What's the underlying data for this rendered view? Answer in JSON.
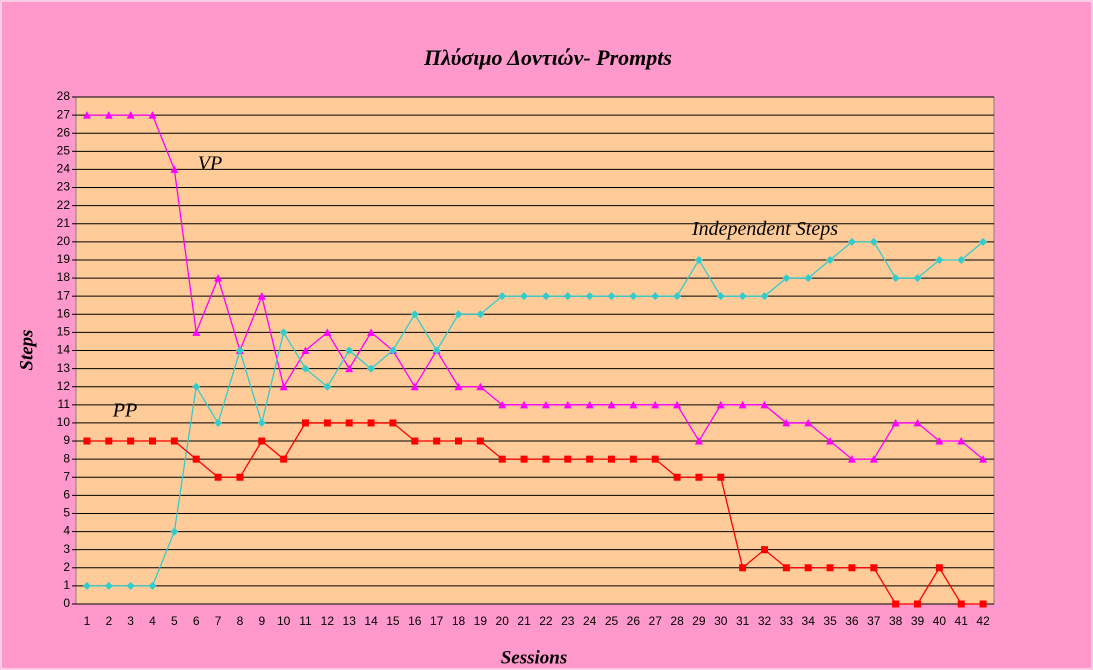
{
  "chart_data": {
    "type": "line",
    "title": "Πλύσιμο Δοντιών- Prompts",
    "x_label": "Sessions",
    "y_label": "Steps",
    "categories": [
      "1",
      "2",
      "3",
      "4",
      "5",
      "6",
      "7",
      "8",
      "9",
      "10",
      "11",
      "12",
      "13",
      "14",
      "15",
      "16",
      "17",
      "18",
      "19",
      "20",
      "21",
      "22",
      "23",
      "24",
      "25",
      "26",
      "27",
      "28",
      "29",
      "30",
      "31",
      "32",
      "33",
      "34",
      "35",
      "36",
      "37",
      "38",
      "39",
      "40",
      "41",
      "42"
    ],
    "series": [
      {
        "name": "VP",
        "color": "#ff00ff",
        "marker": "triangle",
        "values": [
          27,
          27,
          27,
          27,
          24,
          15,
          18,
          14,
          17,
          12,
          14,
          15,
          13,
          15,
          14,
          12,
          14,
          12,
          12,
          11,
          11,
          11,
          11,
          11,
          11,
          11,
          11,
          11,
          9,
          11,
          11,
          11,
          10,
          10,
          9,
          8,
          8,
          10,
          10,
          9,
          9,
          8
        ]
      },
      {
        "name": "Independent Steps",
        "color": "#33cccc",
        "marker": "diamond",
        "values": [
          1,
          1,
          1,
          1,
          4,
          12,
          10,
          14,
          10,
          15,
          13,
          12,
          14,
          13,
          14,
          16,
          14,
          16,
          16,
          17,
          17,
          17,
          17,
          17,
          17,
          17,
          17,
          17,
          19,
          17,
          17,
          17,
          18,
          18,
          19,
          20,
          20,
          18,
          18,
          19,
          19,
          20
        ]
      },
      {
        "name": "PP",
        "color": "#ff0000",
        "marker": "square",
        "values": [
          9,
          9,
          9,
          9,
          9,
          8,
          7,
          7,
          9,
          8,
          10,
          10,
          10,
          10,
          10,
          9,
          9,
          9,
          9,
          8,
          8,
          8,
          8,
          8,
          8,
          8,
          8,
          7,
          7,
          7,
          2,
          3,
          2,
          2,
          2,
          2,
          2,
          0,
          0,
          2,
          0,
          0
        ]
      }
    ],
    "ylim": [
      0,
      28
    ],
    "yticks": [
      0,
      1,
      2,
      3,
      4,
      5,
      6,
      7,
      8,
      9,
      10,
      11,
      12,
      13,
      14,
      15,
      16,
      17,
      18,
      19,
      20,
      21,
      22,
      23,
      24,
      25,
      26,
      27,
      28
    ],
    "grid": true
  }
}
